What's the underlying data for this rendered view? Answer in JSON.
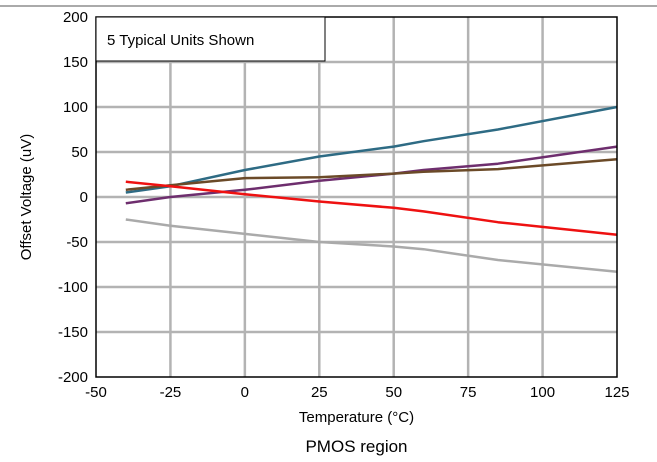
{
  "chart_data": {
    "type": "line",
    "xlabel": "Temperature (°C)",
    "ylabel": "Offset Voltage (uV)",
    "caption": "PMOS region",
    "annotation": "5 Typical Units Shown",
    "xlim": [
      -50,
      125
    ],
    "ylim": [
      -200,
      200
    ],
    "xticks": [
      -50,
      -25,
      0,
      25,
      50,
      75,
      100,
      125
    ],
    "yticks": [
      200,
      150,
      100,
      50,
      0,
      -50,
      -100,
      -150,
      -200
    ],
    "grid": true,
    "series": [
      {
        "color": "#2e6b84",
        "x": [
          -40,
          -25,
          0,
          25,
          50,
          60,
          85,
          125
        ],
        "y": [
          5,
          12,
          30,
          45,
          56,
          62,
          75,
          100
        ]
      },
      {
        "color": "#6e2e6e",
        "x": [
          -40,
          -25,
          0,
          25,
          50,
          60,
          85,
          125
        ],
        "y": [
          -7,
          0,
          8,
          18,
          26,
          30,
          37,
          56
        ]
      },
      {
        "color": "#6b4a28",
        "x": [
          -40,
          -25,
          0,
          25,
          50,
          60,
          85,
          125
        ],
        "y": [
          8,
          13,
          21,
          22,
          26,
          28,
          31,
          42
        ]
      },
      {
        "color": "#ee1111",
        "x": [
          -40,
          -25,
          0,
          25,
          50,
          60,
          85,
          125
        ],
        "y": [
          17,
          12,
          3,
          -5,
          -12,
          -16,
          -28,
          -42
        ]
      },
      {
        "color": "#aaaaaa",
        "x": [
          -40,
          -25,
          0,
          25,
          50,
          60,
          85,
          125
        ],
        "y": [
          -25,
          -32,
          -41,
          -50,
          -55,
          -58,
          -70,
          -83
        ]
      }
    ]
  }
}
